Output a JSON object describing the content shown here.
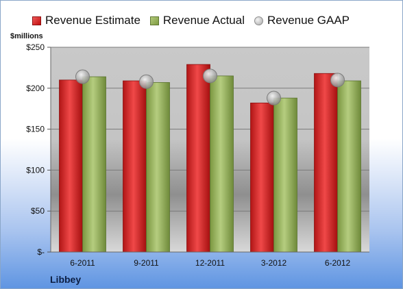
{
  "chart_data": {
    "type": "bar",
    "categories": [
      "6-2011",
      "9-2011",
      "12-2011",
      "3-2012",
      "6-2012"
    ],
    "series": [
      {
        "name": "Revenue Estimate",
        "values": [
          210,
          209,
          229,
          182,
          218
        ],
        "color": "#d42020"
      },
      {
        "name": "Revenue Actual",
        "values": [
          214,
          207,
          215,
          188,
          209
        ],
        "color": "#94b25c"
      },
      {
        "name": "Revenue GAAP",
        "values": [
          214,
          208,
          215,
          188,
          210
        ],
        "color": "#c8c8c8",
        "marker": "circle"
      }
    ],
    "ylabel": "$millions",
    "ylim": [
      0,
      250
    ],
    "yticks": [
      0,
      50,
      100,
      150,
      200,
      250
    ],
    "ytick_labels": [
      "$-",
      "$50",
      "$100",
      "$150",
      "$200",
      "$250"
    ],
    "grid": true,
    "legend_position": "top"
  },
  "company_name": "Libbey"
}
